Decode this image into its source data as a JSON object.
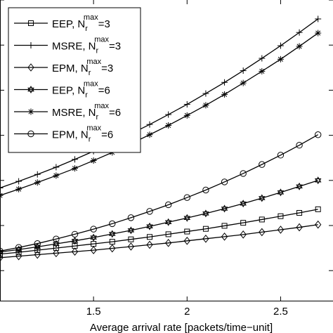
{
  "chart_data": {
    "type": "line",
    "title": "",
    "xlabel": "Average arrival rate [packets/time−unit]",
    "ylabel": "",
    "xlim": [
      1.0,
      2.78
    ],
    "ylim": [
      0,
      1
    ],
    "x_ticks": [
      1.5,
      2,
      2.5
    ],
    "x_tick_labels": [
      "1.5",
      "2",
      "2.5"
    ],
    "grid": false,
    "legend_placement": "top-left",
    "x": [
      1.0,
      1.1,
      1.2,
      1.3,
      1.4,
      1.5,
      1.6,
      1.7,
      1.8,
      1.9,
      2.0,
      2.1,
      2.2,
      2.3,
      2.4,
      2.5,
      2.6,
      2.7
    ],
    "series": [
      {
        "name": "EEP, N_r^max=3",
        "legend_label": "EEP, N",
        "sub": "r",
        "sup": "max",
        "suffix": "=3",
        "marker": "square",
        "values": [
          0.155,
          0.161,
          0.168,
          0.175,
          0.182,
          0.189,
          0.196,
          0.204,
          0.212,
          0.221,
          0.23,
          0.239,
          0.249,
          0.259,
          0.27,
          0.281,
          0.292,
          0.304
        ]
      },
      {
        "name": "MSRE, N_r^max=3",
        "legend_label": "MSRE, N",
        "sub": "r",
        "sup": "max",
        "suffix": "=3",
        "marker": "plus",
        "values": [
          0.375,
          0.397,
          0.42,
          0.444,
          0.47,
          0.497,
          0.525,
          0.555,
          0.586,
          0.619,
          0.653,
          0.689,
          0.726,
          0.765,
          0.806,
          0.848,
          0.892,
          0.937
        ]
      },
      {
        "name": "EPM, N_r^max=3",
        "legend_label": "EPM, N",
        "sub": "r",
        "sup": "max",
        "suffix": "=3",
        "marker": "diamond",
        "values": [
          0.143,
          0.148,
          0.153,
          0.158,
          0.163,
          0.168,
          0.174,
          0.18,
          0.186,
          0.192,
          0.199,
          0.206,
          0.213,
          0.22,
          0.228,
          0.236,
          0.244,
          0.253
        ]
      },
      {
        "name": "EEP, N_r^max=6",
        "legend_label": "EEP, N",
        "sub": "r",
        "sup": "max",
        "suffix": "=6",
        "marker": "star6",
        "values": [
          0.162,
          0.17,
          0.179,
          0.189,
          0.199,
          0.21,
          0.222,
          0.234,
          0.247,
          0.261,
          0.275,
          0.29,
          0.306,
          0.323,
          0.341,
          0.36,
          0.38,
          0.4
        ]
      },
      {
        "name": "MSRE, N_r^max=6",
        "legend_label": "MSRE, N",
        "sub": "r",
        "sup": "max",
        "suffix": "=6",
        "marker": "asterisk",
        "values": [
          0.35,
          0.371,
          0.393,
          0.416,
          0.44,
          0.466,
          0.493,
          0.522,
          0.552,
          0.583,
          0.616,
          0.65,
          0.686,
          0.724,
          0.763,
          0.803,
          0.846,
          0.89
        ]
      },
      {
        "name": "EPM, N_r^max=6",
        "legend_label": "EPM, N",
        "sub": "r",
        "sup": "max",
        "suffix": "=6",
        "marker": "circle",
        "values": [
          0.165,
          0.177,
          0.19,
          0.205,
          0.221,
          0.238,
          0.256,
          0.276,
          0.297,
          0.319,
          0.343,
          0.368,
          0.395,
          0.423,
          0.453,
          0.484,
          0.517,
          0.552
        ]
      }
    ]
  }
}
